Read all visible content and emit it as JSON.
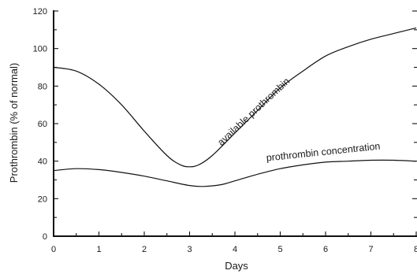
{
  "chart_data": {
    "type": "line",
    "xlabel": "Days",
    "ylabel": "Prothrombin (% of normal)",
    "xlim": [
      0,
      8
    ],
    "ylim": [
      0,
      120
    ],
    "x_ticks": [
      "0",
      "1",
      "2",
      "3",
      "4",
      "5",
      "6",
      "7",
      "8"
    ],
    "y_ticks": [
      "0",
      "20",
      "40",
      "60",
      "80",
      "100",
      "120"
    ],
    "grid": false,
    "series": [
      {
        "name": "available prothrombin",
        "x": [
          0,
          0.5,
          1,
          1.5,
          2,
          2.5,
          2.8,
          3,
          3.2,
          3.5,
          4,
          4.5,
          5,
          5.5,
          6,
          6.5,
          7,
          7.5,
          8
        ],
        "y": [
          90,
          88,
          81,
          70,
          56,
          43,
          38,
          37,
          38,
          43,
          55,
          67,
          79,
          88,
          96,
          101,
          105,
          108,
          111
        ]
      },
      {
        "name": "prothrombin concentration",
        "x": [
          0,
          0.5,
          1,
          1.5,
          2,
          2.5,
          3,
          3.3,
          3.7,
          4,
          4.5,
          5,
          5.5,
          6,
          6.5,
          7,
          7.5,
          8
        ],
        "y": [
          35,
          36,
          35.5,
          34,
          32,
          29.5,
          27,
          26.5,
          27.5,
          29.5,
          33,
          36,
          38,
          39.5,
          40,
          40.5,
          40.5,
          40
        ]
      }
    ],
    "annotations": [
      {
        "text": "available prothrombin",
        "x": 3.7,
        "y": 48,
        "angle_deg": -43
      },
      {
        "text": "prothrombin concentration",
        "x": 4.7,
        "y": 40,
        "angle_deg": -6
      }
    ]
  }
}
